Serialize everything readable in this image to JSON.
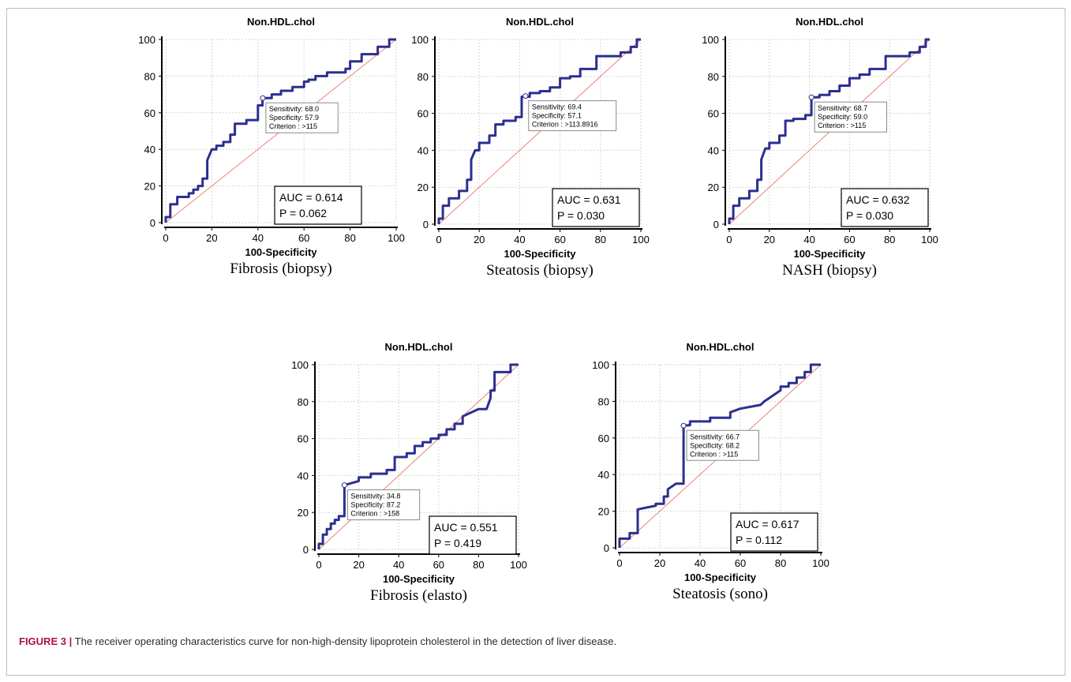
{
  "caption": {
    "label": "FIGURE 3",
    "separator": "|",
    "text": "The receiver operating characteristics curve for non-high-density lipoprotein cholesterol in the detection of liver disease."
  },
  "colors": {
    "roc_line": "#2b2f8f",
    "diagonal": "#e8837a",
    "grid": "#d6d6d6",
    "caption_accent": "#b0123c"
  },
  "chart_data": [
    {
      "type": "line",
      "title": "Non.HDL.chol",
      "xlabel": "100-Specificity",
      "ylabel": "",
      "subcaption": "Fibrosis (biopsy)",
      "xlim": [
        0,
        100
      ],
      "ylim": [
        0,
        100
      ],
      "xticks": [
        "0",
        "20",
        "40",
        "60",
        "80",
        "100"
      ],
      "yticks": [
        "0",
        "20",
        "40",
        "60",
        "80",
        "100"
      ],
      "grid": true,
      "reference_line": "diagonal",
      "series": [
        {
          "x": [
            0,
            0,
            2,
            2,
            5,
            5,
            10,
            10,
            12,
            12,
            14,
            14,
            16,
            16,
            18,
            18,
            20,
            22,
            22,
            25,
            25,
            28,
            28,
            30,
            30,
            35,
            35,
            40,
            40,
            42,
            42,
            46,
            46,
            50,
            50,
            55,
            55,
            60,
            60,
            62,
            62,
            65,
            65,
            70,
            70,
            78,
            78,
            80,
            80,
            85,
            85,
            92,
            92,
            97,
            97,
            100
          ],
          "y": [
            0,
            3,
            3,
            10,
            10,
            14,
            14,
            16,
            16,
            18,
            18,
            20,
            20,
            24,
            24,
            34,
            40,
            40,
            42,
            42,
            44,
            44,
            48,
            48,
            54,
            54,
            56,
            56,
            64,
            64,
            68,
            68,
            70,
            70,
            72,
            72,
            74,
            74,
            77,
            77,
            78,
            78,
            80,
            80,
            82,
            82,
            84,
            84,
            88,
            88,
            92,
            92,
            96,
            96,
            100,
            100
          ]
        }
      ],
      "point": {
        "x": 42.1,
        "y": 68.0
      },
      "tooltip": [
        "Sensitivity: 68.0",
        "Specificity: 57.9",
        "Criterion : >115"
      ],
      "stats": [
        "AUC = 0.614",
        "P = 0.062"
      ]
    },
    {
      "type": "line",
      "title": "Non.HDL.chol",
      "xlabel": "100-Specificity",
      "ylabel": "",
      "subcaption": "Steatosis (biopsy)",
      "xlim": [
        0,
        100
      ],
      "ylim": [
        0,
        100
      ],
      "xticks": [
        "0",
        "20",
        "40",
        "60",
        "80",
        "100"
      ],
      "yticks": [
        "0",
        "20",
        "40",
        "60",
        "80",
        "100"
      ],
      "grid": true,
      "reference_line": "diagonal",
      "series": [
        {
          "x": [
            0,
            0,
            2,
            2,
            5,
            5,
            10,
            10,
            14,
            14,
            16,
            16,
            18,
            20,
            20,
            25,
            25,
            28,
            28,
            32,
            32,
            38,
            38,
            41,
            41,
            45,
            45,
            50,
            50,
            55,
            55,
            60,
            60,
            65,
            65,
            70,
            70,
            78,
            78,
            90,
            90,
            95,
            95,
            98,
            98,
            100
          ],
          "y": [
            0,
            3,
            3,
            10,
            10,
            14,
            14,
            18,
            18,
            24,
            24,
            35,
            40,
            40,
            44,
            44,
            48,
            48,
            54,
            54,
            56,
            56,
            58,
            58,
            69,
            69,
            71,
            71,
            72,
            72,
            74,
            74,
            79,
            79,
            80,
            80,
            84,
            84,
            91,
            91,
            93,
            93,
            96,
            96,
            100,
            100
          ]
        }
      ],
      "point": {
        "x": 42.9,
        "y": 69.4
      },
      "tooltip": [
        "Sensitivity: 69.4",
        "Specificity: 57.1",
        "Criterion : >113.8916"
      ],
      "stats": [
        "AUC = 0.631",
        "P = 0.030"
      ]
    },
    {
      "type": "line",
      "title": "Non.HDL.chol",
      "xlabel": "100-Specificity",
      "ylabel": "",
      "subcaption": "NASH (biopsy)",
      "xlim": [
        0,
        100
      ],
      "ylim": [
        0,
        100
      ],
      "xticks": [
        "0",
        "20",
        "40",
        "60",
        "80",
        "100"
      ],
      "yticks": [
        "0",
        "20",
        "40",
        "60",
        "80",
        "100"
      ],
      "grid": true,
      "reference_line": "diagonal",
      "series": [
        {
          "x": [
            0,
            0,
            2,
            2,
            5,
            5,
            10,
            10,
            14,
            14,
            16,
            16,
            18,
            20,
            20,
            25,
            25,
            28,
            28,
            32,
            32,
            38,
            38,
            41,
            41,
            45,
            45,
            50,
            50,
            55,
            55,
            60,
            60,
            65,
            65,
            70,
            70,
            78,
            78,
            90,
            90,
            95,
            95,
            98,
            98,
            100
          ],
          "y": [
            0,
            3,
            3,
            10,
            10,
            14,
            14,
            18,
            18,
            24,
            24,
            35,
            41,
            41,
            44,
            44,
            48,
            48,
            56,
            56,
            57,
            57,
            59,
            59,
            68.7,
            68.7,
            70,
            70,
            72,
            72,
            75,
            75,
            79,
            79,
            81,
            81,
            84,
            84,
            91,
            91,
            93,
            93,
            96,
            96,
            100,
            100
          ]
        }
      ],
      "point": {
        "x": 41.0,
        "y": 68.7
      },
      "tooltip": [
        "Sensitivity: 68.7",
        "Specificity: 59.0",
        "Criterion : >115"
      ],
      "stats": [
        "AUC = 0.632",
        "P = 0.030"
      ]
    },
    {
      "type": "line",
      "title": "Non.HDL.chol",
      "xlabel": "100-Specificity",
      "ylabel": "",
      "subcaption": "Fibrosis (elasto)",
      "xlim": [
        0,
        100
      ],
      "ylim": [
        0,
        100
      ],
      "xticks": [
        "0",
        "20",
        "40",
        "60",
        "80",
        "100"
      ],
      "yticks": [
        "0",
        "20",
        "40",
        "60",
        "80",
        "100"
      ],
      "grid": true,
      "reference_line": "diagonal",
      "series": [
        {
          "x": [
            0,
            0,
            2,
            2,
            4,
            4,
            6,
            6,
            8,
            8,
            10,
            10,
            12.8,
            12.8,
            20,
            20,
            26,
            26,
            34,
            34,
            38,
            38,
            44,
            44,
            48,
            48,
            52,
            52,
            56,
            56,
            60,
            60,
            64,
            64,
            68,
            68,
            72,
            72,
            80,
            84,
            86,
            86,
            88,
            88,
            96,
            96,
            100
          ],
          "y": [
            0,
            3,
            3,
            8,
            8,
            11,
            11,
            14,
            14,
            16,
            16,
            18,
            18,
            34.8,
            37,
            39,
            39,
            41,
            41,
            43,
            43,
            50,
            50,
            52,
            52,
            56,
            56,
            58,
            58,
            60,
            60,
            62,
            62,
            65,
            65,
            68,
            68,
            72,
            76,
            76,
            82,
            86,
            86,
            96,
            96,
            100,
            100
          ]
        }
      ],
      "point": {
        "x": 12.8,
        "y": 34.8
      },
      "tooltip": [
        "Sensitivity: 34.8",
        "Specificity: 87.2",
        "Criterion : >158"
      ],
      "stats": [
        "AUC = 0.551",
        "P = 0.419"
      ]
    },
    {
      "type": "line",
      "title": "Non.HDL.chol",
      "xlabel": "100-Specificity",
      "ylabel": "",
      "subcaption": "Steatosis (sono)",
      "xlim": [
        0,
        100
      ],
      "ylim": [
        0,
        100
      ],
      "xticks": [
        "0",
        "20",
        "40",
        "60",
        "80",
        "100"
      ],
      "yticks": [
        "0",
        "20",
        "40",
        "60",
        "80",
        "100"
      ],
      "grid": true,
      "reference_line": "diagonal",
      "series": [
        {
          "x": [
            0,
            0,
            5,
            5,
            9,
            9,
            18,
            18,
            22,
            22,
            24,
            24,
            28,
            31.8,
            31.8,
            35,
            35,
            45,
            45,
            55,
            55,
            60,
            70,
            72,
            80,
            80,
            84,
            84,
            88,
            88,
            92,
            92,
            95,
            95,
            100
          ],
          "y": [
            0,
            5,
            5,
            8,
            8,
            21,
            23,
            24,
            24,
            28,
            28,
            32,
            35,
            35,
            66.7,
            67,
            69,
            69,
            71,
            71,
            74,
            76,
            78,
            80,
            86,
            88,
            88,
            90,
            90,
            93,
            93,
            96,
            96,
            100,
            100
          ]
        }
      ],
      "point": {
        "x": 31.8,
        "y": 66.7
      },
      "tooltip": [
        "Sensitivity: 66.7",
        "Specificity: 68.2",
        "Criterion : >115"
      ],
      "stats": [
        "AUC = 0.617",
        "P = 0.112"
      ]
    }
  ]
}
